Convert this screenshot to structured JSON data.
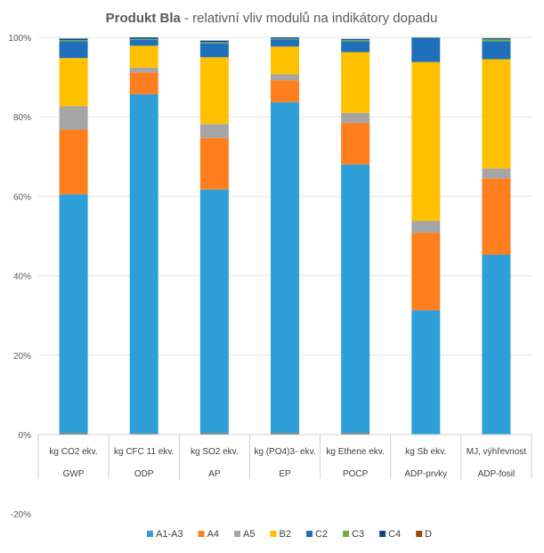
{
  "chart_data": {
    "type": "stacked-bar",
    "title_bold": "Produkt Bla",
    "title_rest": " - relativní  vliv  modulů  na  indikátory  dopadu",
    "ylim": [
      -0.2,
      1.0
    ],
    "yticks": [
      {
        "value": 1.0,
        "label": "100%"
      },
      {
        "value": 0.8,
        "label": "80%"
      },
      {
        "value": 0.6,
        "label": "60%"
      },
      {
        "value": 0.4,
        "label": "40%"
      },
      {
        "value": 0.2,
        "label": "20%"
      },
      {
        "value": 0.0,
        "label": "0%"
      },
      {
        "value": -0.2,
        "label": "-20%"
      }
    ],
    "categories": [
      {
        "unit": "kg CO2 ekv.",
        "indicator": "GWP"
      },
      {
        "unit": "kg CFC 11 ekv.",
        "indicator": "ODP"
      },
      {
        "unit": "kg SO2 ekv.",
        "indicator": "AP"
      },
      {
        "unit": "kg (PO4)3- ekv.",
        "indicator": "EP"
      },
      {
        "unit": "kg Ethene ekv.",
        "indicator": "POCP"
      },
      {
        "unit": "kg Sb ekv.",
        "indicator": "ADP-prvky"
      },
      {
        "unit": "MJ, výhřevnost",
        "indicator": "ADP-fosil"
      }
    ],
    "series": [
      {
        "name": "D",
        "color": "#9e480e",
        "values": [
          0.003,
          0.002,
          0.003,
          0.003,
          0.003,
          0.0,
          0.0
        ]
      },
      {
        "name": "A1-A3",
        "color": "#2e9fd8",
        "values": [
          0.602,
          0.855,
          0.614,
          0.834,
          0.677,
          0.313,
          0.453
        ]
      },
      {
        "name": "A4",
        "color": "#ff7f1e",
        "values": [
          0.163,
          0.055,
          0.13,
          0.055,
          0.105,
          0.195,
          0.192
        ]
      },
      {
        "name": "A5",
        "color": "#a5a5a5",
        "values": [
          0.059,
          0.012,
          0.035,
          0.015,
          0.025,
          0.03,
          0.025
        ]
      },
      {
        "name": "B2",
        "color": "#ffc000",
        "values": [
          0.121,
          0.055,
          0.168,
          0.07,
          0.153,
          0.4,
          0.275
        ]
      },
      {
        "name": "C2",
        "color": "#1f6fba",
        "values": [
          0.042,
          0.015,
          0.035,
          0.018,
          0.027,
          0.06,
          0.045
        ]
      },
      {
        "name": "C3",
        "color": "#70ad47",
        "values": [
          0.003,
          0.002,
          0.003,
          0.002,
          0.003,
          0.001,
          0.005
        ]
      },
      {
        "name": "C4",
        "color": "#0d4a87",
        "values": [
          0.004,
          0.004,
          0.004,
          0.003,
          0.003,
          0.001,
          0.003
        ]
      }
    ],
    "legend": [
      "A1-A3",
      "A4",
      "A5",
      "B2",
      "C2",
      "C3",
      "C4",
      "D"
    ],
    "legend_position": "bottom"
  }
}
